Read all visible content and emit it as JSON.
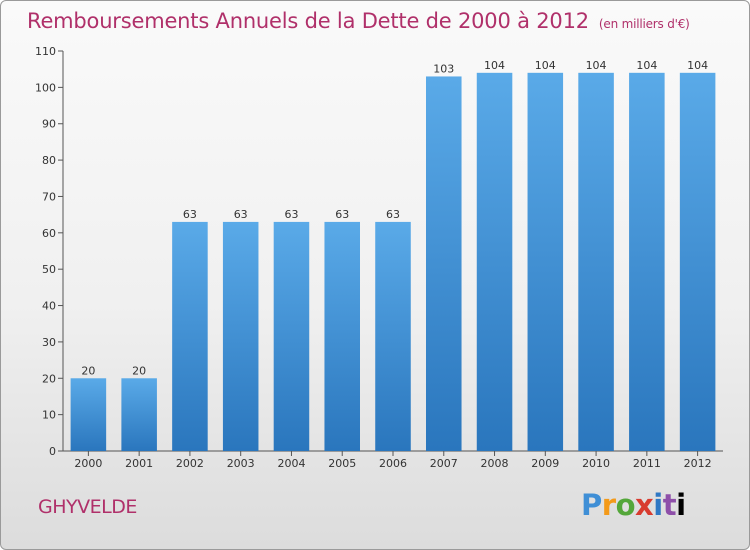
{
  "title": "Remboursements Annuels de la Dette de 2000 à 2012",
  "unit": "(en milliers d'€)",
  "city": "GHYVELDE",
  "logo": [
    "P",
    "r",
    "o",
    "x",
    "i",
    "t",
    "i"
  ],
  "colors": {
    "bar": "#3a8fd4",
    "title": "#b0306a"
  },
  "chart_data": {
    "type": "bar",
    "title": "Remboursements Annuels de la Dette de 2000 à 2012",
    "subtitle": "(en milliers d'€)",
    "categories": [
      "2000",
      "2001",
      "2002",
      "2003",
      "2004",
      "2005",
      "2006",
      "2007",
      "2008",
      "2009",
      "2010",
      "2011",
      "2012"
    ],
    "values": [
      20,
      20,
      63,
      63,
      63,
      63,
      63,
      103,
      104,
      104,
      104,
      104,
      104
    ],
    "ylim": [
      0,
      110
    ],
    "yticks": [
      0,
      10,
      20,
      30,
      40,
      50,
      60,
      70,
      80,
      90,
      100,
      110
    ],
    "grid": false,
    "data_labels": true
  }
}
